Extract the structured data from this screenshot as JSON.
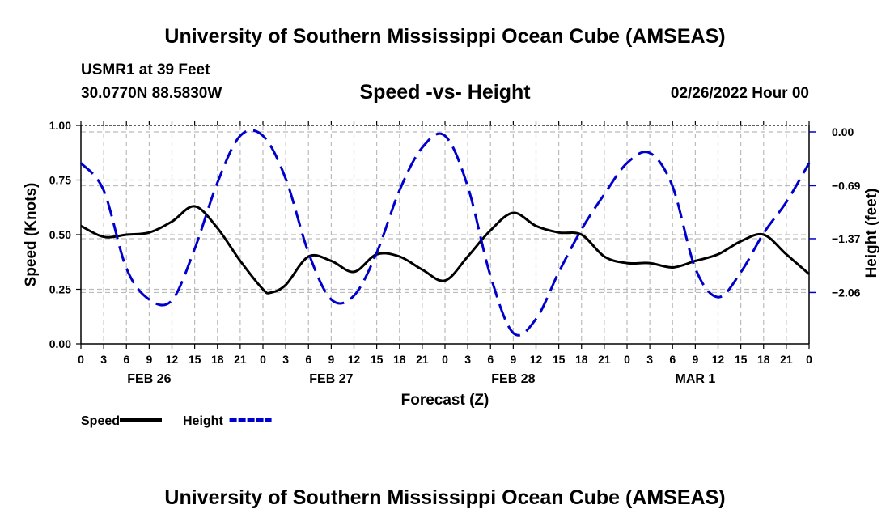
{
  "header": {
    "title": "University of Southern Mississippi Ocean Cube (AMSEAS)",
    "station": "USMR1 at 39 Feet",
    "location": "30.0770N  88.5830W",
    "subtitle": "Speed -vs- Height",
    "datetime": "02/26/2022 Hour 00"
  },
  "footer": {
    "title": "University of Southern Mississippi Ocean Cube (AMSEAS)"
  },
  "chart_data": {
    "type": "line",
    "title": "Speed -vs- Height",
    "xlabel": "Forecast (Z)",
    "ylabel": "Speed (Knots)",
    "y2label": "Height (feet)",
    "x_unit": "forecast hours",
    "xlim": [
      0,
      96
    ],
    "ylim": [
      0,
      1
    ],
    "y2lim": [
      -2.72,
      0.0
    ],
    "grid": true,
    "x_ticks": [
      0,
      3,
      6,
      9,
      12,
      15,
      18,
      21,
      24,
      27,
      30,
      33,
      36,
      39,
      42,
      45,
      48,
      51,
      54,
      57,
      60,
      63,
      66,
      69,
      72,
      75,
      78,
      81,
      84,
      87,
      90,
      93,
      96
    ],
    "x_tick_labels": [
      "0",
      "3",
      "6",
      "9",
      "12",
      "15",
      "18",
      "21",
      "0",
      "3",
      "6",
      "9",
      "12",
      "15",
      "18",
      "21",
      "0",
      "3",
      "6",
      "9",
      "12",
      "15",
      "18",
      "21",
      "0",
      "3",
      "6",
      "9",
      "12",
      "15",
      "18",
      "21",
      "0"
    ],
    "date_labels": [
      {
        "hour": 9,
        "label": "FEB 26"
      },
      {
        "hour": 33,
        "label": "FEB 27"
      },
      {
        "hour": 57,
        "label": "FEB 28"
      },
      {
        "hour": 81,
        "label": "MAR 1"
      }
    ],
    "y_ticks": [
      0.0,
      0.25,
      0.5,
      0.75,
      1.0
    ],
    "y_tick_labels": [
      "0.00",
      "0.25",
      "0.50",
      "0.75",
      "1.00"
    ],
    "y2_ticks": [
      0.0,
      -0.69,
      -1.37,
      -2.06
    ],
    "y2_tick_labels": [
      "0.00",
      "−0.69",
      "−1.37",
      "−2.06"
    ],
    "legend": [
      {
        "name": "Speed",
        "color": "#000000",
        "dash": "solid"
      },
      {
        "name": "Height",
        "color": "#0000cc",
        "dash": "dashed"
      }
    ],
    "series": [
      {
        "name": "Speed",
        "axis": "left",
        "unit": "knots",
        "color": "#000000",
        "x": [
          0,
          3,
          6,
          9,
          12,
          15,
          18,
          21,
          24,
          25,
          27,
          30,
          33,
          36,
          39,
          42,
          45,
          48,
          51,
          54,
          57,
          60,
          63,
          66,
          69,
          72,
          75,
          78,
          81,
          84,
          87,
          90,
          93,
          96
        ],
        "values": [
          0.54,
          0.49,
          0.5,
          0.51,
          0.56,
          0.63,
          0.53,
          0.38,
          0.25,
          0.235,
          0.27,
          0.4,
          0.38,
          0.33,
          0.41,
          0.4,
          0.34,
          0.29,
          0.4,
          0.52,
          0.6,
          0.54,
          0.51,
          0.5,
          0.4,
          0.37,
          0.37,
          0.35,
          0.38,
          0.41,
          0.47,
          0.5,
          0.41,
          0.32
        ]
      },
      {
        "name": "Height",
        "axis": "right",
        "unit": "feet",
        "color": "#0000cc",
        "x": [
          0,
          3,
          6,
          9,
          12,
          15,
          18,
          21,
          24,
          27,
          30,
          33,
          36,
          39,
          42,
          45,
          48,
          51,
          54,
          57,
          60,
          63,
          66,
          69,
          72,
          75,
          78,
          81,
          84,
          87,
          90,
          93,
          96
        ],
        "values": [
          -0.4,
          -0.75,
          -1.75,
          -2.15,
          -2.16,
          -1.5,
          -0.65,
          -0.05,
          -0.05,
          -0.6,
          -1.55,
          -2.15,
          -2.1,
          -1.55,
          -0.75,
          -0.2,
          -0.05,
          -0.7,
          -1.85,
          -2.58,
          -2.4,
          -1.8,
          -1.25,
          -0.8,
          -0.4,
          -0.27,
          -0.7,
          -1.75,
          -2.12,
          -1.8,
          -1.3,
          -0.9,
          -0.4
        ]
      }
    ]
  }
}
